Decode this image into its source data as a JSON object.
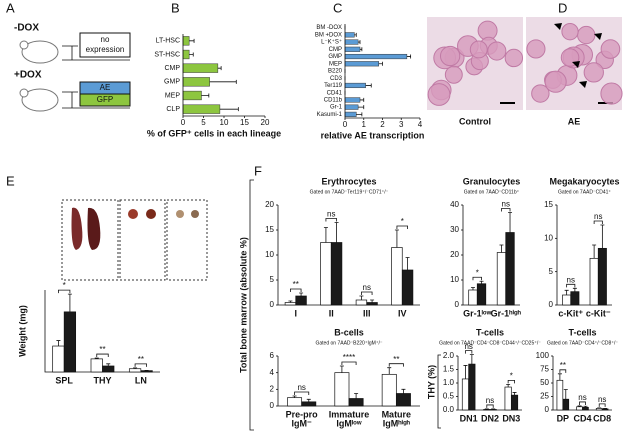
{
  "panel_a": {
    "letter": "A",
    "minus_dox": "-DOX",
    "no_expression": [
      "no",
      "expression"
    ],
    "plus_dox": "+DOX",
    "ae": "AE",
    "gfp": "GFP"
  },
  "panel_d": {
    "letter": "D",
    "control": "Control",
    "ae": "AE"
  },
  "panel_e": {
    "letter": "E"
  },
  "panel_f": {
    "letter": "F",
    "ylabel_bm": "Total bone marrow (absolute %)",
    "ylabel_thy": "THY (%)"
  },
  "chart_data": [
    {
      "type": "hbar",
      "panel_label": "B",
      "xlabel": "% of GFP⁺ cells in each lineage",
      "color": "#8dc63f",
      "categories": [
        "LT-HSC",
        "ST-HSC",
        "CMP",
        "GMP",
        "MEP",
        "CLP"
      ],
      "values": [
        1.5,
        1.5,
        8.5,
        6.5,
        4.5,
        9
      ],
      "errors": [
        1.2,
        1.0,
        0.8,
        6.5,
        1.8,
        4.5
      ],
      "xlim": [
        0,
        20
      ],
      "xticks": [
        0,
        5,
        10,
        15,
        20
      ]
    },
    {
      "type": "hbar",
      "panel_label": "C",
      "xlabel": "relative AE transcription",
      "color": "#5b9bd5",
      "categories": [
        "BM -DOX",
        "BM +DOX",
        "L⁻K⁺S⁺",
        "CMP",
        "GMP",
        "MEP",
        "B220",
        "CD3",
        "Ter119",
        "CD41",
        "CD11b",
        "Gr-1",
        "Kasumi-1"
      ],
      "values": [
        0,
        0.5,
        0.7,
        0.8,
        3.3,
        1.8,
        0,
        0,
        1.1,
        0,
        0.8,
        0.7,
        0.6
      ],
      "errors": [
        0,
        0.1,
        0.1,
        0.1,
        0.2,
        0.2,
        0,
        0,
        0.3,
        0,
        0.2,
        0.3,
        0.3
      ],
      "xlim": [
        0,
        4
      ],
      "xticks": [
        0,
        1,
        2,
        3,
        4
      ]
    },
    {
      "type": "bar",
      "ylabel": "Weight (mg)",
      "categories": [
        [
          "SPL"
        ],
        [
          "THY"
        ],
        [
          "LN"
        ]
      ],
      "series": [
        {
          "color": "#ffffff",
          "values": [
            95,
            48,
            12
          ],
          "errors": [
            20,
            3,
            3
          ]
        },
        {
          "color": "#1a1a1a",
          "values": [
            220,
            22,
            5
          ],
          "errors": [
            65,
            8,
            1
          ]
        }
      ],
      "significance": [
        "*",
        "**",
        "**"
      ],
      "ylim": [
        0,
        300
      ]
    },
    {
      "type": "bar",
      "title": "Erythrocytes",
      "subtitle": "Gated on 7AAD⁻Ter119⁺/⁻CD71⁺/⁻",
      "categories": [
        [
          "I"
        ],
        [
          "II"
        ],
        [
          "III"
        ],
        [
          "IV"
        ]
      ],
      "series": [
        {
          "color": "#ffffff",
          "values": [
            0.5,
            12.5,
            1,
            11.5
          ],
          "errors": [
            0.3,
            3,
            0.8,
            3.5
          ]
        },
        {
          "color": "#1a1a1a",
          "values": [
            1.8,
            12.5,
            0.5,
            7
          ],
          "errors": [
            0.6,
            4,
            0.5,
            2.5
          ]
        }
      ],
      "significance": [
        "**",
        "ns",
        "ns",
        "*"
      ],
      "ylim": [
        0,
        20
      ],
      "yticks": [
        0,
        5,
        10,
        15,
        20
      ]
    },
    {
      "type": "bar",
      "title": "Granulocytes",
      "subtitle": "Gated on 7AAD⁻CD11b⁺",
      "categories": [
        [
          "Gr-1ˡᵒʷ"
        ],
        [
          "Gr-1ʰⁱᵍʰ"
        ]
      ],
      "series": [
        {
          "color": "#ffffff",
          "values": [
            6,
            21
          ],
          "errors": [
            1,
            3
          ]
        },
        {
          "color": "#1a1a1a",
          "values": [
            8.5,
            29
          ],
          "errors": [
            1,
            8
          ]
        }
      ],
      "significance": [
        "*",
        "ns"
      ],
      "ylim": [
        0,
        40
      ],
      "yticks": [
        0,
        10,
        20,
        30,
        40
      ]
    },
    {
      "type": "bar",
      "title": "Megakaryocytes",
      "subtitle": "Gated on 7AAD⁻CD41⁺",
      "categories": [
        [
          "c-Kit⁺"
        ],
        [
          "c-Kit⁻"
        ]
      ],
      "series": [
        {
          "color": "#ffffff",
          "values": [
            1.5,
            7
          ],
          "errors": [
            0.7,
            2
          ]
        },
        {
          "color": "#1a1a1a",
          "values": [
            2,
            8.5
          ],
          "errors": [
            0.5,
            3.5
          ]
        }
      ],
      "significance": [
        "ns",
        "ns"
      ],
      "ylim": [
        0,
        15
      ],
      "yticks": [
        0,
        5,
        10,
        15
      ]
    },
    {
      "type": "bar",
      "title": "B-cells",
      "subtitle": "Gated on 7AAD⁻B220⁺IgM⁺/⁻",
      "categories": [
        [
          "Pre-pro",
          "IgM⁻"
        ],
        [
          "Immature",
          "IgMˡᵒʷ"
        ],
        [
          "Mature",
          "IgMʰⁱᵍʰ"
        ]
      ],
      "series": [
        {
          "color": "#ffffff",
          "values": [
            1,
            4,
            3.8
          ],
          "errors": [
            0.2,
            0.8,
            0.8
          ]
        },
        {
          "color": "#1a1a1a",
          "values": [
            0.5,
            0.9,
            1.5
          ],
          "errors": [
            0.3,
            0.6,
            0.5
          ]
        }
      ],
      "significance": [
        "ns",
        "****",
        "**"
      ],
      "ylim": [
        0,
        6
      ],
      "yticks": [
        0,
        2,
        4,
        6
      ]
    },
    {
      "type": "bar",
      "title": "T-cells",
      "subtitle": "Gated on 7AAD⁻CD4⁻CD8⁻CD44⁺/⁻CD25⁺/⁻",
      "categories": [
        [
          "DN1"
        ],
        [
          "DN2"
        ],
        [
          "DN3"
        ]
      ],
      "series": [
        {
          "color": "#ffffff",
          "values": [
            1.15,
            0.02,
            0.85
          ],
          "errors": [
            0.5,
            0.02,
            0.1
          ]
        },
        {
          "color": "#1a1a1a",
          "values": [
            1.7,
            0.02,
            0.55
          ],
          "errors": [
            0.35,
            0.02,
            0.1
          ]
        }
      ],
      "significance": [
        "ns",
        "ns",
        "*"
      ],
      "ylim": [
        0,
        2
      ],
      "yticks": [
        {
          "value": 0,
          "label": "0.0"
        },
        {
          "value": 0.5,
          "label": "0.5"
        },
        {
          "value": 1,
          "label": "1.0"
        },
        {
          "value": 1.5,
          "label": "1.5"
        },
        {
          "value": 2,
          "label": "2.0"
        }
      ]
    },
    {
      "type": "bar",
      "title": "T-cells",
      "subtitle": "Gated on 7AAD⁻CD4⁺/⁻CD8⁺/⁻",
      "categories": [
        [
          "DP"
        ],
        [
          "CD4"
        ],
        [
          "CD8"
        ]
      ],
      "series": [
        {
          "color": "#ffffff",
          "values": [
            55,
            6,
            3
          ],
          "errors": [
            12,
            1.5,
            1
          ]
        },
        {
          "color": "#1a1a1a",
          "values": [
            20,
            5,
            2
          ],
          "errors": [
            18,
            2,
            1
          ]
        }
      ],
      "significance": [
        "**",
        "ns",
        "ns"
      ],
      "ylim": [
        0,
        100
      ],
      "yticks": [
        0,
        25,
        50,
        75,
        100
      ]
    }
  ]
}
